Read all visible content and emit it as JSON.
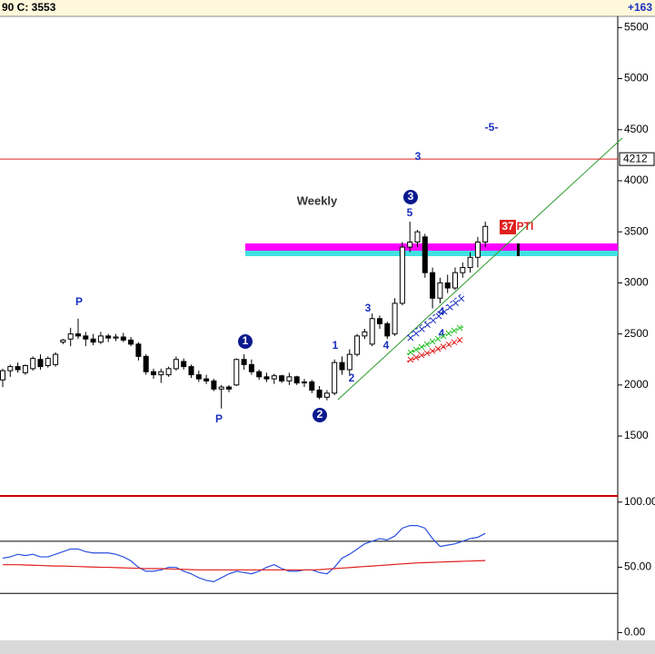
{
  "header": {
    "left": "90   C: 3553",
    "right": "+163"
  },
  "chart_data": [
    {
      "type": "candlestick",
      "open": [
        2050,
        2140,
        2180,
        2120,
        2160,
        2250,
        2190,
        2200,
        2420,
        2450,
        2500,
        2480,
        2450,
        2420,
        2480,
        2460,
        2470,
        2440,
        2400,
        2280,
        2130,
        2100,
        2100,
        2160,
        2230,
        2180,
        2100,
        2060,
        2040,
        1960,
        1980,
        2000,
        2250,
        2200,
        2130,
        2080,
        2060,
        2090,
        2040,
        2080,
        2020,
        2030,
        1950,
        1880,
        1920,
        2220,
        2150,
        2300,
        2480,
        2400,
        2650,
        2600,
        2500,
        2800,
        3350,
        3400,
        3450,
        3100,
        2850,
        3000,
        2950,
        3100,
        3150,
        3250,
        3400
      ],
      "high": [
        2160,
        2200,
        2220,
        2200,
        2280,
        2300,
        2280,
        2320,
        2450,
        2560,
        2650,
        2520,
        2500,
        2520,
        2500,
        2500,
        2510,
        2470,
        2420,
        2300,
        2160,
        2160,
        2180,
        2280,
        2260,
        2200,
        2140,
        2100,
        2060,
        2000,
        2000,
        2260,
        2300,
        2250,
        2150,
        2120,
        2110,
        2100,
        2120,
        2090,
        2060,
        2050,
        1990,
        1950,
        2250,
        2280,
        2350,
        2500,
        2550,
        2700,
        2680,
        2620,
        2850,
        3400,
        3600,
        3520,
        3480,
        3150,
        3050,
        3080,
        3150,
        3200,
        3300,
        3450,
        3600
      ],
      "low": [
        1980,
        2080,
        2120,
        2100,
        2140,
        2150,
        2170,
        2180,
        2400,
        2380,
        2450,
        2380,
        2390,
        2400,
        2420,
        2430,
        2420,
        2380,
        2240,
        2100,
        2060,
        2020,
        2080,
        2140,
        2150,
        2070,
        2030,
        2010,
        1940,
        1770,
        1930,
        1990,
        2150,
        2100,
        2050,
        2030,
        2010,
        2020,
        2000,
        2000,
        1980,
        1920,
        1860,
        1850,
        1900,
        2100,
        2100,
        2280,
        2450,
        2380,
        2550,
        2450,
        2480,
        2780,
        3300,
        3350,
        3050,
        2750,
        2800,
        2900,
        2930,
        3050,
        3100,
        3150,
        3350
      ],
      "close": [
        2140,
        2180,
        2150,
        2190,
        2260,
        2180,
        2260,
        2300,
        2440,
        2500,
        2480,
        2450,
        2420,
        2480,
        2460,
        2470,
        2440,
        2400,
        2280,
        2130,
        2100,
        2130,
        2160,
        2250,
        2180,
        2100,
        2060,
        2040,
        1960,
        1980,
        1960,
        2250,
        2200,
        2130,
        2080,
        2060,
        2090,
        2040,
        2080,
        2020,
        2030,
        1950,
        1880,
        1920,
        2220,
        2150,
        2300,
        2480,
        2520,
        2650,
        2600,
        2480,
        2800,
        3350,
        3400,
        3500,
        3100,
        2850,
        3000,
        2950,
        3100,
        3150,
        3250,
        3400,
        3553
      ],
      "ylim": [
        940,
        5610
      ],
      "yticks": [
        1500,
        2000,
        2500,
        3000,
        3500,
        4000,
        4500,
        5000,
        5500
      ],
      "hline": {
        "value": 4212,
        "label": "4212",
        "color": "#e02020"
      },
      "annotations": [
        "Weekly",
        "P",
        "P",
        "1",
        "2",
        "3",
        "1",
        "2",
        "3",
        "4",
        "5",
        "3",
        "-5-",
        "4",
        "4",
        "37",
        "PTI"
      ]
    },
    {
      "type": "line",
      "series": [
        {
          "color": "#2a4fe0",
          "values": [
            57,
            58,
            60,
            59,
            60,
            58,
            58,
            60,
            62,
            64,
            64,
            62,
            61,
            61,
            61,
            60,
            58,
            55,
            50,
            47,
            47,
            48,
            50,
            50,
            47,
            45,
            42,
            40,
            39,
            42,
            45,
            47,
            46,
            45,
            47,
            50,
            52,
            49,
            47,
            47,
            48,
            48,
            46,
            45,
            50,
            57,
            60,
            64,
            68,
            70,
            72,
            71,
            74,
            80,
            82,
            82,
            80,
            72,
            66,
            67,
            68,
            70,
            72,
            73,
            76
          ]
        },
        {
          "color": "#e02020",
          "values": [
            52,
            52,
            52,
            51.8,
            51.6,
            51.4,
            51.2,
            51,
            51,
            50.8,
            50.6,
            50.4,
            50.2,
            50,
            50,
            49.8,
            49.6,
            49.4,
            49.2,
            49,
            49,
            49,
            48.8,
            48.6,
            48.4,
            48.2,
            48,
            48,
            48,
            48,
            48,
            48,
            48,
            48,
            48,
            48,
            48,
            48,
            48,
            48,
            48,
            48,
            48.2,
            48.6,
            49,
            49.4,
            49.8,
            50.2,
            50.6,
            51,
            51.4,
            51.8,
            52.2,
            52.6,
            53,
            53.4,
            53.6,
            53.8,
            54,
            54.2,
            54.4,
            54.6,
            54.8,
            55,
            55.2
          ]
        }
      ],
      "ylim": [
        -6,
        104
      ],
      "yticks": [
        {
          "value": 0,
          "label": "0.00"
        },
        {
          "value": 50,
          "label": "50.00"
        },
        {
          "value": 100,
          "label": "100.00"
        }
      ],
      "hlines": [
        30,
        70
      ]
    }
  ]
}
